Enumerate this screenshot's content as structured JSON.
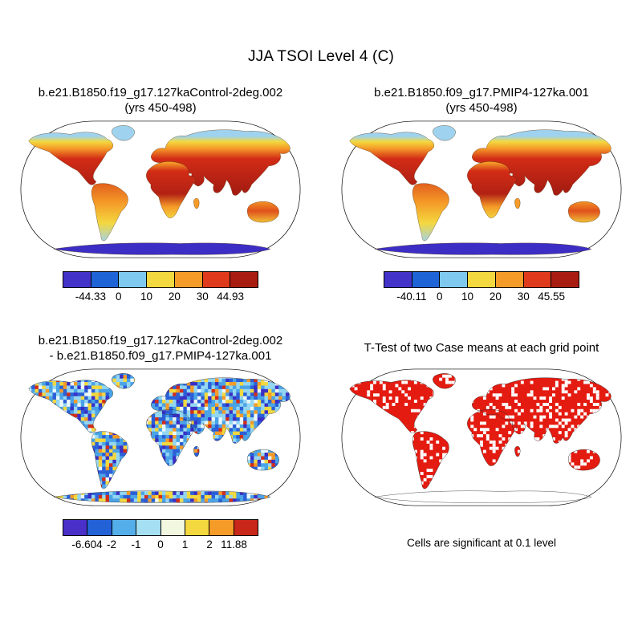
{
  "figure_title": "JJA TSOI Level 4 (C)",
  "panels": [
    {
      "id": "control",
      "title_line1": "b.e21.B1850.f19_g17.127kaControl-2deg.002",
      "title_line2": "(yrs 450-498)",
      "colorbar": {
        "colors": [
          "#4433c8",
          "#1f64d6",
          "#7fc9ee",
          "#f3d83f",
          "#f59b28",
          "#df3a1b",
          "#a81d12"
        ],
        "labels": [
          "-44.33",
          "0",
          "10",
          "20",
          "30",
          "44.93"
        ]
      }
    },
    {
      "id": "pmip4",
      "title_line1": "b.e21.B1850.f09_g17.PMIP4-127ka.001",
      "title_line2": "(yrs 450-498)",
      "colorbar": {
        "colors": [
          "#4433c8",
          "#1f64d6",
          "#7fc9ee",
          "#f3d83f",
          "#f59b28",
          "#df3a1b",
          "#a81d12"
        ],
        "labels": [
          "-40.11",
          "0",
          "10",
          "20",
          "30",
          "45.55"
        ]
      }
    },
    {
      "id": "difference",
      "title_line1": "b.e21.B1850.f19_g17.127kaControl-2deg.002",
      "title_line2": "- b.e21.B1850.f09_g17.PMIP4-127ka.001",
      "colorbar": {
        "colors": [
          "#4a2fc8",
          "#2361d6",
          "#54aeea",
          "#a5dff2",
          "#f2f7e0",
          "#f3d83f",
          "#f59b28",
          "#c8271a"
        ],
        "labels": [
          "-6.604",
          "-2",
          "-1",
          "0",
          "1",
          "2",
          "11.88"
        ]
      }
    },
    {
      "id": "ttest",
      "title_line1": "T-Test of two Case means at each grid point",
      "note": "Cells are significant at 0.1 level"
    }
  ],
  "map_colors": {
    "ocean": "#ffffff",
    "arctic_land_blue": "#9ed2ee",
    "band_yellow": "#f3d83f",
    "band_orange": "#f59b28",
    "hot_land_red": "#d22c16",
    "antarctica_cold_blue": "#3c2ec5",
    "ttest_significant_red": "#e41b10",
    "difference_base_blue": "#bfe2f4"
  },
  "noise": {
    "seed": 20,
    "cell": 4.5,
    "palette": [
      "#3a2ec5",
      "#2a5fd8",
      "#4aa3e6",
      "#93d6f2",
      "#eaf7fb",
      "#f3d83f",
      "#f59b28",
      "#d42d18"
    ],
    "weights": [
      1.2,
      3.2,
      4.0,
      3.4,
      1.6,
      2.2,
      1.4,
      0.8
    ],
    "hole_cell": 4,
    "hole_prob": 0.22
  },
  "chart_data": [
    {
      "type": "heatmap",
      "subtype": "global-map",
      "projection": "robinson",
      "title": "b.e21.B1850.f19_g17.127kaControl-2deg.002 (yrs 450-498)",
      "variable": "JJA TSOI Level 4 (C)",
      "min": -44.33,
      "max": 44.93,
      "contour_levels": [
        0,
        10,
        20,
        30
      ],
      "legend_position": "bottom"
    },
    {
      "type": "heatmap",
      "subtype": "global-map",
      "projection": "robinson",
      "title": "b.e21.B1850.f09_g17.PMIP4-127ka.001 (yrs 450-498)",
      "variable": "JJA TSOI Level 4 (C)",
      "min": -40.11,
      "max": 45.55,
      "contour_levels": [
        0,
        10,
        20,
        30
      ],
      "legend_position": "bottom"
    },
    {
      "type": "heatmap",
      "subtype": "global-map-difference",
      "projection": "robinson",
      "title": "b.e21.B1850.f19_g17.127kaControl-2deg.002 - b.e21.B1850.f09_g17.PMIP4-127ka.001",
      "variable": "JJA TSOI Level 4 (C) difference",
      "min": -6.604,
      "max": 11.88,
      "contour_levels": [
        -2,
        -1,
        0,
        1,
        2
      ],
      "legend_position": "bottom"
    },
    {
      "type": "heatmap",
      "subtype": "significance-mask",
      "projection": "robinson",
      "title": "T-Test of two Case means at each grid point",
      "annotation": "Cells are significant at 0.1 level",
      "significance_level": 0.1
    }
  ]
}
